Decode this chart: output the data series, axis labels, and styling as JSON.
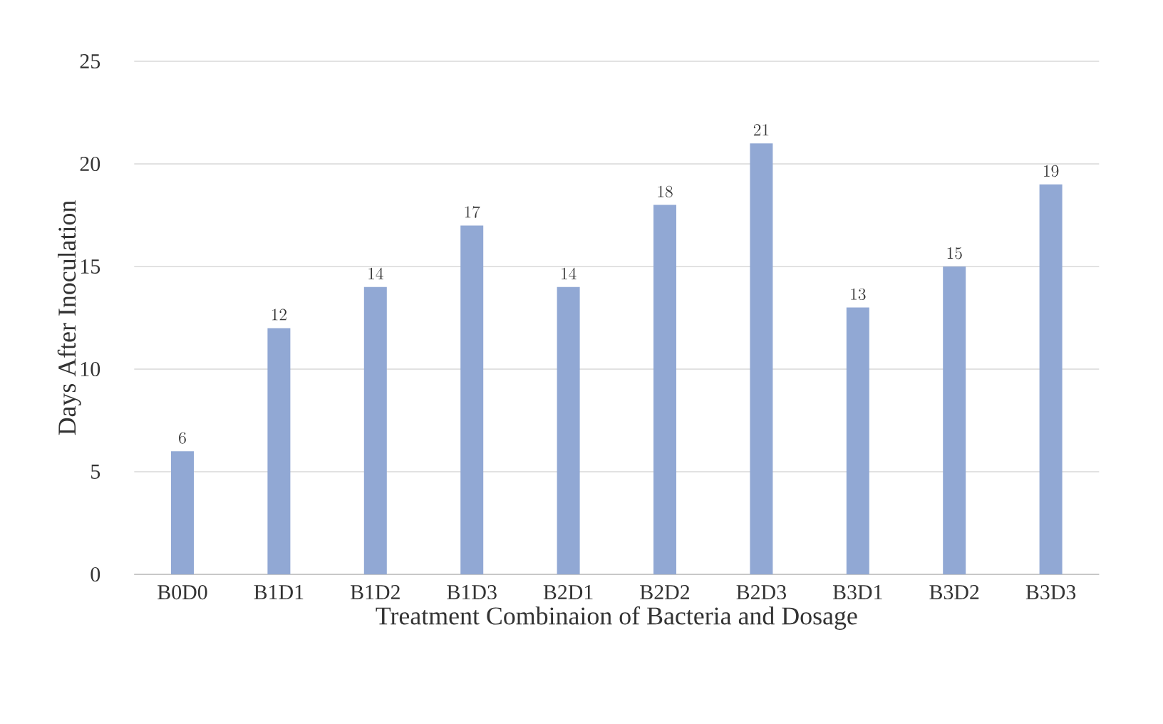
{
  "chart_data": {
    "type": "bar",
    "xlabel": "Treatment Combinaion of Bacteria and Dosage",
    "ylabel": "Days After Inoculation",
    "categories": [
      "B0D0",
      "B1D1",
      "B1D2",
      "B1D3",
      "B2D1",
      "B2D2",
      "B2D3",
      "B3D1",
      "B3D2",
      "B3D3"
    ],
    "values": [
      6,
      12,
      14,
      17,
      14,
      18,
      21,
      13,
      15,
      19
    ],
    "color": "#91a8d4",
    "ylim": [
      0,
      25
    ],
    "yticks": [
      0,
      5,
      10,
      15,
      20,
      25
    ],
    "grid": "y",
    "data_labels": true
  }
}
